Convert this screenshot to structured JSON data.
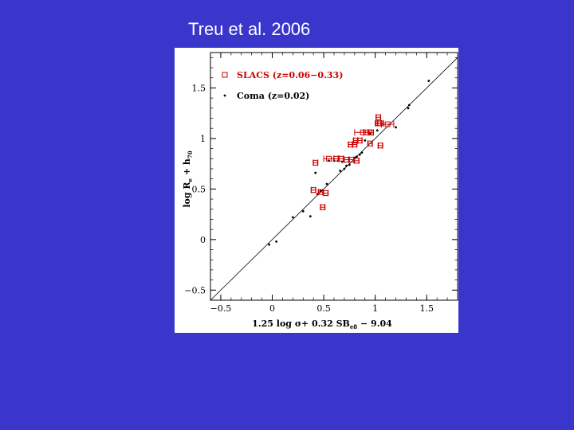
{
  "slide": {
    "title": "Treu et al. 2006"
  },
  "colors": {
    "background": "#3a36cc",
    "slacs": "#cc0000",
    "coma": "#000000"
  },
  "chart_data": {
    "type": "scatter",
    "title": "",
    "xlabel": "1.25 log σ+ 0.32 SB_e8 − 9.04",
    "xlabel_main": "1.25 log σ+ 0.32 SB",
    "xlabel_sub": "e8",
    "xlabel_tail": " − 9.04",
    "ylabel": "log R_e + h_70",
    "ylabel_main": "log R",
    "ylabel_sub1": "e",
    "ylabel_mid": " + h",
    "ylabel_sub2": "70",
    "xlim": [
      -0.6,
      1.8
    ],
    "ylim": [
      -0.6,
      1.85
    ],
    "xticks": [
      -0.5,
      0,
      0.5,
      1,
      1.5
    ],
    "xtick_labels": [
      "−0.5",
      "0",
      "0.5",
      "1",
      "1.5"
    ],
    "yticks": [
      -0.5,
      0,
      0.5,
      1,
      1.5
    ],
    "ytick_labels": [
      "−0.5",
      "0",
      "0.5",
      "1",
      "1.5"
    ],
    "grid": false,
    "legend_position": "top-left",
    "fit_line": {
      "x": [
        -0.6,
        1.8
      ],
      "y": [
        -0.6,
        1.8
      ]
    },
    "series": [
      {
        "name": "SLACS (z=0.06−0.33)",
        "marker": "open-square-errorbar",
        "color": "#cc0000",
        "points": [
          {
            "x": 1.03,
            "y": 1.21,
            "xerr": 0.02
          },
          {
            "x": 1.05,
            "y": 1.15,
            "xerr": 0.03
          },
          {
            "x": 1.12,
            "y": 1.14,
            "xerr": 0.06
          },
          {
            "x": 1.03,
            "y": 1.15,
            "xerr": 0.03
          },
          {
            "x": 0.88,
            "y": 1.06,
            "xerr": 0.08
          },
          {
            "x": 0.91,
            "y": 1.06,
            "xerr": 0.02
          },
          {
            "x": 0.96,
            "y": 1.06,
            "xerr": 0.02
          },
          {
            "x": 0.81,
            "y": 0.98,
            "xerr": 0.02
          },
          {
            "x": 0.85,
            "y": 0.98,
            "xerr": 0.02
          },
          {
            "x": 0.95,
            "y": 0.95,
            "xerr": 0.02
          },
          {
            "x": 1.05,
            "y": 0.93,
            "xerr": 0.02
          },
          {
            "x": 0.76,
            "y": 0.94,
            "xerr": 0.02
          },
          {
            "x": 0.8,
            "y": 0.94,
            "xerr": 0.02
          },
          {
            "x": 0.55,
            "y": 0.8,
            "xerr": 0.05
          },
          {
            "x": 0.62,
            "y": 0.8,
            "xerr": 0.02
          },
          {
            "x": 0.67,
            "y": 0.8,
            "xerr": 0.02
          },
          {
            "x": 0.72,
            "y": 0.79,
            "xerr": 0.02
          },
          {
            "x": 0.77,
            "y": 0.79,
            "xerr": 0.02
          },
          {
            "x": 0.82,
            "y": 0.78,
            "xerr": 0.02
          },
          {
            "x": 0.42,
            "y": 0.76,
            "xerr": 0.02
          },
          {
            "x": 0.4,
            "y": 0.49,
            "xerr": 0.02
          },
          {
            "x": 0.47,
            "y": 0.47,
            "xerr": 0.02
          },
          {
            "x": 0.52,
            "y": 0.46,
            "xerr": 0.02
          },
          {
            "x": 0.49,
            "y": 0.32,
            "xerr": 0.02
          }
        ]
      },
      {
        "name": "Coma (z=0.02)",
        "marker": "dot",
        "color": "#000000",
        "points": [
          {
            "x": 1.52,
            "y": 1.57
          },
          {
            "x": 1.33,
            "y": 1.33
          },
          {
            "x": 1.32,
            "y": 1.3
          },
          {
            "x": 1.2,
            "y": 1.11
          },
          {
            "x": 1.02,
            "y": 1.08
          },
          {
            "x": 0.95,
            "y": 1.05
          },
          {
            "x": 0.9,
            "y": 0.98
          },
          {
            "x": 0.87,
            "y": 0.86
          },
          {
            "x": 0.85,
            "y": 0.84
          },
          {
            "x": 0.82,
            "y": 0.82
          },
          {
            "x": 0.8,
            "y": 0.81
          },
          {
            "x": 0.75,
            "y": 0.74
          },
          {
            "x": 0.72,
            "y": 0.73
          },
          {
            "x": 0.7,
            "y": 0.7
          },
          {
            "x": 0.66,
            "y": 0.68
          },
          {
            "x": 0.68,
            "y": 0.77
          },
          {
            "x": 0.64,
            "y": 0.78
          },
          {
            "x": 0.6,
            "y": 0.78
          },
          {
            "x": 0.55,
            "y": 0.78
          },
          {
            "x": 0.53,
            "y": 0.55
          },
          {
            "x": 0.47,
            "y": 0.48
          },
          {
            "x": 0.44,
            "y": 0.45
          },
          {
            "x": 0.42,
            "y": 0.66
          },
          {
            "x": 0.37,
            "y": 0.23
          },
          {
            "x": 0.3,
            "y": 0.28
          },
          {
            "x": 0.2,
            "y": 0.22
          },
          {
            "x": 0.04,
            "y": -0.02
          },
          {
            "x": -0.03,
            "y": -0.05
          }
        ]
      }
    ]
  }
}
